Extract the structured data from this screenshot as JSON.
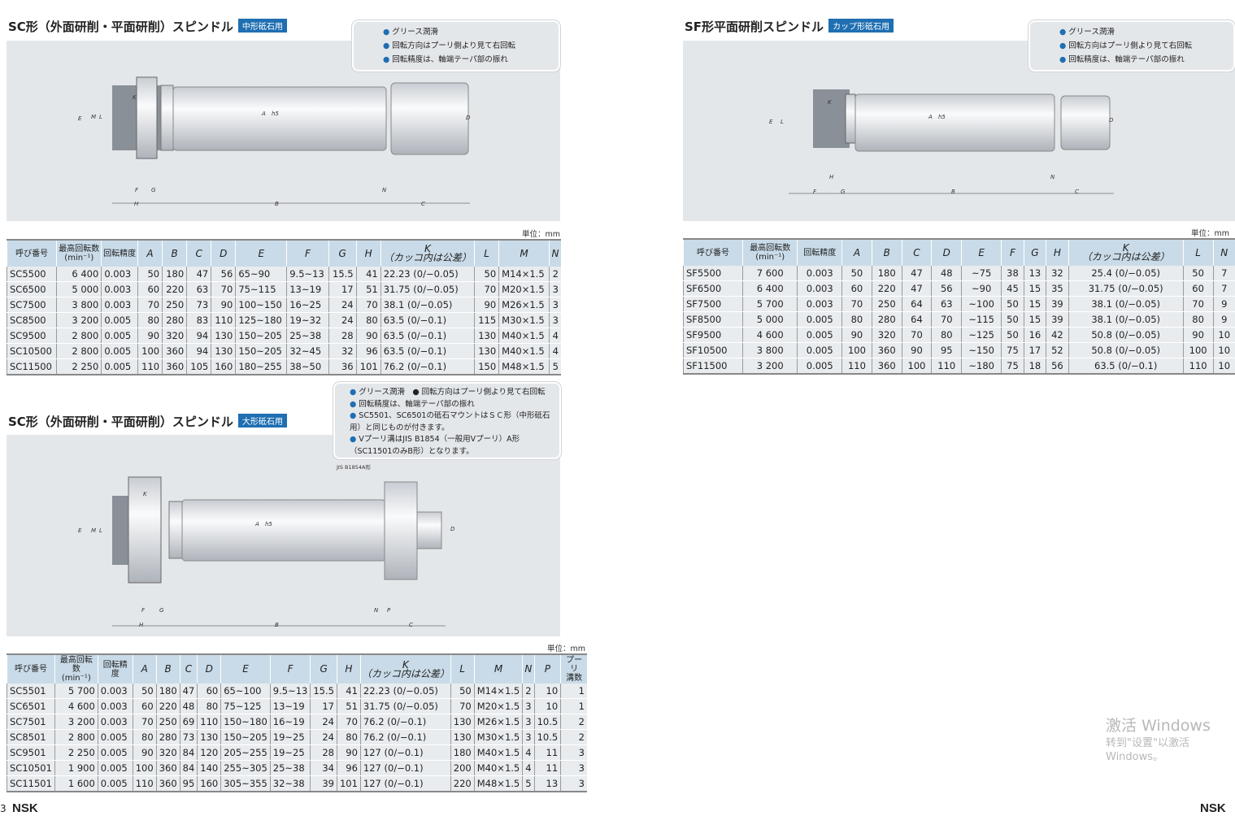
{
  "sc_medium": {
    "title": "SC形（外面研削・平面研削）スピンドル",
    "badge": "中形砥石用",
    "notes": [
      "グリース潤滑",
      "回転方向はプーリ側より見て右回転",
      "回転精度は、軸端テーパ部の振れ"
    ],
    "dims": [
      "E",
      "L",
      "M",
      "K",
      "A",
      "h5",
      "D",
      "F",
      "G",
      "H",
      "B",
      "N",
      "C"
    ],
    "unit": "単位：mm",
    "headers": [
      "呼び番号",
      "最高回転数\n(min⁻¹)",
      "回転精度",
      "A",
      "B",
      "C",
      "D",
      "E",
      "F",
      "G",
      "H",
      "K\n（カッコ内は公差）",
      "L",
      "M",
      "N"
    ],
    "rows": [
      [
        "SC5500",
        "6 400",
        "0.003",
        "50",
        "180",
        "47",
        "56",
        "65~90",
        "9.5~13",
        "15.5",
        "41",
        "22.23 (0/−0.05)",
        "50",
        "M14×1.5",
        "2"
      ],
      [
        "SC6500",
        "5 000",
        "0.003",
        "60",
        "220",
        "63",
        "70",
        "75~115",
        "13~19",
        "17",
        "51",
        "31.75 (0/−0.05)",
        "70",
        "M20×1.5",
        "3"
      ],
      [
        "SC7500",
        "3 800",
        "0.003",
        "70",
        "250",
        "73",
        "90",
        "100~150",
        "16~25",
        "24",
        "70",
        "38.1 (0/−0.05)",
        "90",
        "M26×1.5",
        "3"
      ],
      [
        "SC8500",
        "3 200",
        "0.005",
        "80",
        "280",
        "83",
        "110",
        "125~180",
        "19~32",
        "24",
        "80",
        "63.5 (0/−0.1)",
        "115",
        "M30×1.5",
        "3"
      ],
      [
        "SC9500",
        "2 800",
        "0.005",
        "90",
        "320",
        "94",
        "130",
        "150~205",
        "25~38",
        "28",
        "90",
        "63.5 (0/−0.1)",
        "130",
        "M40×1.5",
        "4"
      ],
      [
        "SC10500",
        "2 800",
        "0.005",
        "100",
        "360",
        "94",
        "130",
        "150~205",
        "32~45",
        "32",
        "96",
        "63.5 (0/−0.1)",
        "130",
        "M40×1.5",
        "4"
      ],
      [
        "SC11500",
        "2 250",
        "0.005",
        "110",
        "360",
        "105",
        "160",
        "180~255",
        "38~50",
        "36",
        "101",
        "76.2 (0/−0.1)",
        "150",
        "M48×1.5",
        "5"
      ]
    ]
  },
  "sf": {
    "title": "SF形平面研削スピンドル",
    "badge": "カップ形砥石用",
    "notes": [
      "グリース潤滑",
      "回転方向はプーリ側より見て右回転",
      "回転精度は、軸端テーパ部の振れ"
    ],
    "dims": [
      "E",
      "L",
      "K",
      "A",
      "h5",
      "D",
      "H",
      "N",
      "F",
      "G",
      "B",
      "C"
    ],
    "unit": "単位：mm",
    "headers": [
      "呼び番号",
      "最高回転数\n(min⁻¹)",
      "回転精度",
      "A",
      "B",
      "C",
      "D",
      "E",
      "F",
      "G",
      "H",
      "K\n（カッコ内は公差）",
      "L",
      "N"
    ],
    "rows": [
      [
        "SF5500",
        "7 600",
        "0.003",
        "50",
        "180",
        "47",
        "48",
        "~75",
        "38",
        "13",
        "32",
        "25.4 (0/−0.05)",
        "50",
        "7"
      ],
      [
        "SF6500",
        "6 400",
        "0.003",
        "60",
        "220",
        "47",
        "56",
        "~90",
        "45",
        "15",
        "35",
        "31.75 (0/−0.05)",
        "60",
        "7"
      ],
      [
        "SF7500",
        "5 700",
        "0.003",
        "70",
        "250",
        "64",
        "63",
        "~100",
        "50",
        "15",
        "39",
        "38.1 (0/−0.05)",
        "70",
        "9"
      ],
      [
        "SF8500",
        "5 000",
        "0.005",
        "80",
        "280",
        "64",
        "70",
        "~115",
        "50",
        "15",
        "39",
        "38.1 (0/−0.05)",
        "80",
        "9"
      ],
      [
        "SF9500",
        "4 600",
        "0.005",
        "90",
        "320",
        "70",
        "80",
        "~125",
        "50",
        "16",
        "42",
        "50.8 (0/−0.05)",
        "90",
        "10"
      ],
      [
        "SF10500",
        "3 800",
        "0.005",
        "100",
        "360",
        "90",
        "95",
        "~150",
        "75",
        "17",
        "52",
        "50.8 (0/−0.05)",
        "100",
        "10"
      ],
      [
        "SF11500",
        "3 200",
        "0.005",
        "110",
        "360",
        "100",
        "110",
        "~180",
        "75",
        "18",
        "56",
        "63.5 (0/−0.1)",
        "110",
        "10"
      ]
    ]
  },
  "sc_large": {
    "title": "SC形（外面研削・平面研削）スピンドル",
    "badge": "大形砥石用",
    "notes": [
      "グリース潤滑　● 回転方向はプーリ側より見て右回転",
      "回転精度は、軸端テーパ部の振れ",
      "SC5501、SC6501の砥石マウントはＳＣ形（中形砥石用）と同じものが付きます。",
      "Vプーリ溝はJIS B1854（一般用Vプーリ）A形（SC11501のみB形）となります。"
    ],
    "pulley_label": "JIS B1854A形",
    "dims": [
      "E",
      "L",
      "M",
      "K",
      "A",
      "h5",
      "D",
      "F",
      "G",
      "N",
      "P",
      "H",
      "B",
      "C"
    ],
    "unit": "単位：mm",
    "headers": [
      "呼び番号",
      "最高回転数\n(min⁻¹)",
      "回転精度",
      "A",
      "B",
      "C",
      "D",
      "E",
      "F",
      "G",
      "H",
      "K\n（カッコ内は公差）",
      "L",
      "M",
      "N",
      "P",
      "プーリ\n溝数"
    ],
    "rows": [
      [
        "SC5501",
        "5 700",
        "0.003",
        "50",
        "180",
        "47",
        "60",
        "65~100",
        "9.5~13",
        "15.5",
        "41",
        "22.23 (0/−0.05)",
        "50",
        "M14×1.5",
        "2",
        "10",
        "1"
      ],
      [
        "SC6501",
        "4 600",
        "0.003",
        "60",
        "220",
        "48",
        "80",
        "75~125",
        "13~19",
        "17",
        "51",
        "31.75 (0/−0.05)",
        "70",
        "M20×1.5",
        "3",
        "10",
        "1"
      ],
      [
        "SC7501",
        "3 200",
        "0.003",
        "70",
        "250",
        "69",
        "110",
        "150~180",
        "16~19",
        "24",
        "70",
        "76.2 (0/−0.1)",
        "130",
        "M26×1.5",
        "3",
        "10.5",
        "2"
      ],
      [
        "SC8501",
        "2 800",
        "0.005",
        "80",
        "280",
        "73",
        "130",
        "150~205",
        "19~25",
        "24",
        "80",
        "76.2 (0/−0.1)",
        "130",
        "M30×1.5",
        "3",
        "10.5",
        "2"
      ],
      [
        "SC9501",
        "2 250",
        "0.005",
        "90",
        "320",
        "84",
        "120",
        "205~255",
        "19~25",
        "28",
        "90",
        "127 (0/−0.1)",
        "180",
        "M40×1.5",
        "4",
        "11",
        "3"
      ],
      [
        "SC10501",
        "1 900",
        "0.005",
        "100",
        "360",
        "84",
        "140",
        "255~305",
        "25~38",
        "34",
        "96",
        "127 (0/−0.1)",
        "200",
        "M40×1.5",
        "4",
        "11",
        "3"
      ],
      [
        "SC11501",
        "1 600",
        "0.005",
        "110",
        "360",
        "95",
        "160",
        "305~355",
        "32~38",
        "39",
        "101",
        "127 (0/−0.1)",
        "220",
        "M48×1.5",
        "5",
        "13",
        "3"
      ]
    ]
  },
  "footer": {
    "page": "3",
    "brand": "NSK",
    "brand_right": "NSK"
  },
  "watermark": {
    "line1": "激活 Windows",
    "line2": "转到\"设置\"以激活 Windows。"
  }
}
